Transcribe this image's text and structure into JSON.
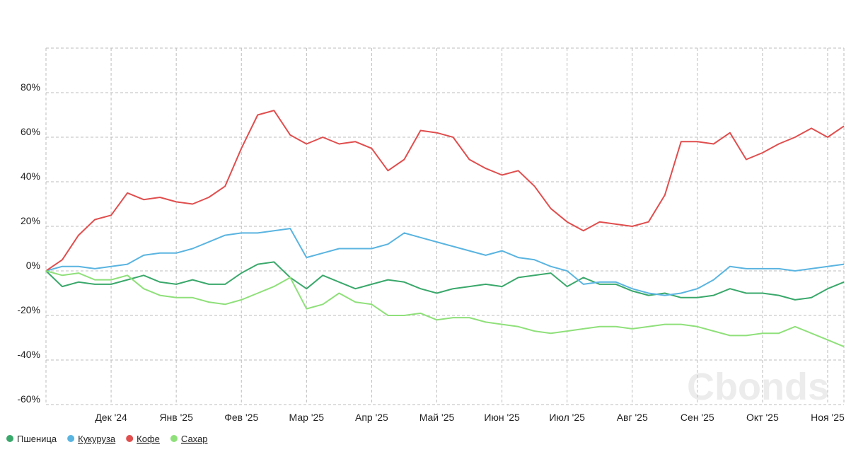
{
  "chart_data": {
    "type": "line",
    "categories": [
      null,
      null,
      null,
      null,
      "Дек '24",
      null,
      null,
      null,
      "Янв '25",
      null,
      null,
      null,
      "Фев '25",
      null,
      null,
      null,
      "Мар '25",
      null,
      null,
      null,
      "Апр '25",
      null,
      null,
      null,
      "Май '25",
      null,
      null,
      null,
      "Июн '25",
      null,
      null,
      null,
      "Июл '25",
      null,
      null,
      null,
      "Авг '25",
      null,
      null,
      null,
      "Сен '25",
      null,
      null,
      null,
      "Окт '25",
      null,
      null,
      null,
      "Ноя '25",
      null
    ],
    "series": [
      {
        "name": "Пшеница",
        "color": "#3aa86b",
        "values": [
          0,
          -7,
          -5,
          -6,
          -6,
          -4,
          -2,
          -5,
          -6,
          -4,
          -6,
          -6,
          -1,
          3,
          4,
          -3,
          -8,
          -2,
          -5,
          -8,
          -6,
          -4,
          -5,
          -8,
          -10,
          -8,
          -7,
          -6,
          -7,
          -3,
          -2,
          -1,
          -7,
          -3,
          -6,
          -6,
          -9,
          -11,
          -10,
          -12,
          -12,
          -11,
          -8,
          -10,
          -10,
          -11,
          -13,
          -12,
          -8,
          -5
        ]
      },
      {
        "name": "Кукуруза",
        "color": "#5ab4e0",
        "values": [
          0,
          2,
          2,
          1,
          2,
          3,
          7,
          8,
          8,
          10,
          13,
          16,
          17,
          17,
          18,
          19,
          6,
          8,
          10,
          10,
          10,
          12,
          17,
          15,
          13,
          11,
          9,
          7,
          9,
          6,
          5,
          2,
          0,
          -6,
          -5,
          -5,
          -8,
          -10,
          -11,
          -10,
          -8,
          -4,
          2,
          1,
          1,
          1,
          0,
          1,
          2,
          3
        ]
      },
      {
        "name": "Кофе",
        "color": "#e04e4e",
        "values": [
          0,
          5,
          16,
          23,
          25,
          35,
          32,
          33,
          31,
          30,
          33,
          38,
          55,
          70,
          72,
          61,
          57,
          60,
          57,
          58,
          55,
          45,
          50,
          63,
          62,
          60,
          50,
          46,
          43,
          45,
          38,
          28,
          22,
          18,
          22,
          21,
          20,
          22,
          34,
          58,
          58,
          57,
          62,
          50,
          53,
          57,
          60,
          64,
          60,
          65
        ]
      },
      {
        "name": "Сахар",
        "color": "#8fe07a",
        "values": [
          0,
          -2,
          -1,
          -4,
          -4,
          -2,
          -8,
          -11,
          -12,
          -12,
          -14,
          -15,
          -13,
          -10,
          -7,
          -3,
          -17,
          -15,
          -10,
          -14,
          -15,
          -20,
          -20,
          -19,
          -22,
          -21,
          -21,
          -23,
          -24,
          -25,
          -27,
          -28,
          -27,
          -26,
          -25,
          -25,
          -26,
          -25,
          -24,
          -24,
          -25,
          -27,
          -29,
          -29,
          -28,
          -28,
          -25,
          -28,
          -31,
          -34
        ]
      }
    ],
    "ylim": [
      -60,
      100
    ],
    "yticks": [
      {
        "value": -60,
        "label": "-60%"
      },
      {
        "value": -40,
        "label": "-40%"
      },
      {
        "value": -20,
        "label": "-20%"
      },
      {
        "value": 0,
        "label": "0%"
      },
      {
        "value": 20,
        "label": "20%"
      },
      {
        "value": 40,
        "label": "40%"
      },
      {
        "value": 60,
        "label": "60%"
      },
      {
        "value": 80,
        "label": "80%"
      }
    ],
    "grid": true,
    "watermark": "Cbonds"
  }
}
